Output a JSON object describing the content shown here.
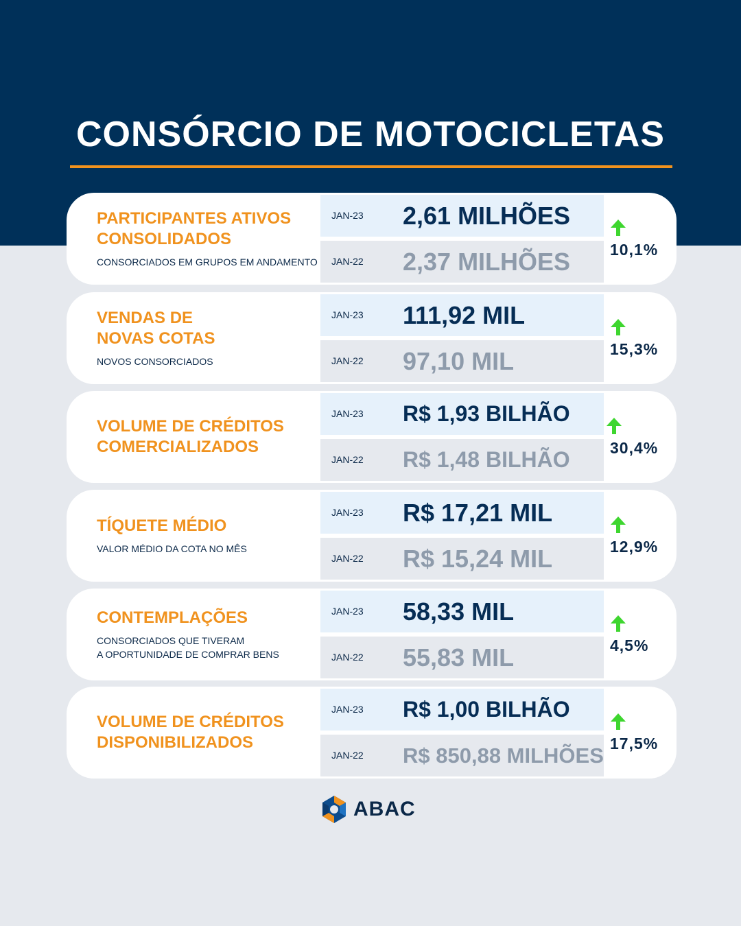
{
  "title": "CONSÓRCIO DE MOTOCICLETAS",
  "colors": {
    "navy": "#003059",
    "accent_orange": "#f0921e",
    "up_green": "#3ed62f",
    "muted_value": "#8e9bab"
  },
  "cards": [
    {
      "title": "PARTICIPANTES ATIVOS\nCONSOLIDADOS",
      "subtitle": "CONSORCIADOS EM GRUPOS EM ANDAMENTO",
      "current": {
        "period": "JAN-23",
        "value": "2,61 MILHÕES"
      },
      "previous": {
        "period": "JAN-22",
        "value": "2,37 MILHÕES"
      },
      "change": "10,1%",
      "trend_icon": "arrow-up-icon"
    },
    {
      "title": "VENDAS DE\nNOVAS COTAS",
      "subtitle": "NOVOS CONSORCIADOS",
      "current": {
        "period": "JAN-23",
        "value": "111,92 MIL"
      },
      "previous": {
        "period": "JAN-22",
        "value": "97,10 MIL"
      },
      "change": "15,3%",
      "trend_icon": "arrow-up-icon"
    },
    {
      "title": "VOLUME DE CRÉDITOS\nCOMERCIALIZADOS",
      "subtitle": "",
      "current": {
        "period": "JAN-23",
        "value": "R$ 1,93 BILHÃO"
      },
      "previous": {
        "period": "JAN-22",
        "value": "R$ 1,48 BILHÃO"
      },
      "change": "30,4%",
      "trend_icon": "arrow-up-icon"
    },
    {
      "title": "TÍQUETE MÉDIO",
      "subtitle": "VALOR MÉDIO DA COTA NO MÊS",
      "current": {
        "period": "JAN-23",
        "value": "R$ 17,21 MIL"
      },
      "previous": {
        "period": "JAN-22",
        "value": "R$ 15,24 MIL"
      },
      "change": "12,9%",
      "trend_icon": "arrow-up-icon"
    },
    {
      "title": "CONTEMPLAÇÕES",
      "subtitle": "CONSORCIADOS QUE TIVERAM\nA OPORTUNIDADE DE COMPRAR BENS",
      "current": {
        "period": "JAN-23",
        "value": "58,33 MIL"
      },
      "previous": {
        "period": "JAN-22",
        "value": "55,83 MIL"
      },
      "change": "4,5%",
      "trend_icon": "arrow-up-icon"
    },
    {
      "title": "VOLUME DE CRÉDITOS\nDISPONIBILIZADOS",
      "subtitle": "",
      "current": {
        "period": "JAN-23",
        "value": "R$ 1,00 BILHÃO"
      },
      "previous": {
        "period": "JAN-22",
        "value": "R$ 850,88 MILHÕES"
      },
      "change": "17,5%",
      "trend_icon": "arrow-up-icon"
    }
  ],
  "logo": {
    "text": "ABAC",
    "icon": "abac-logo-icon"
  }
}
